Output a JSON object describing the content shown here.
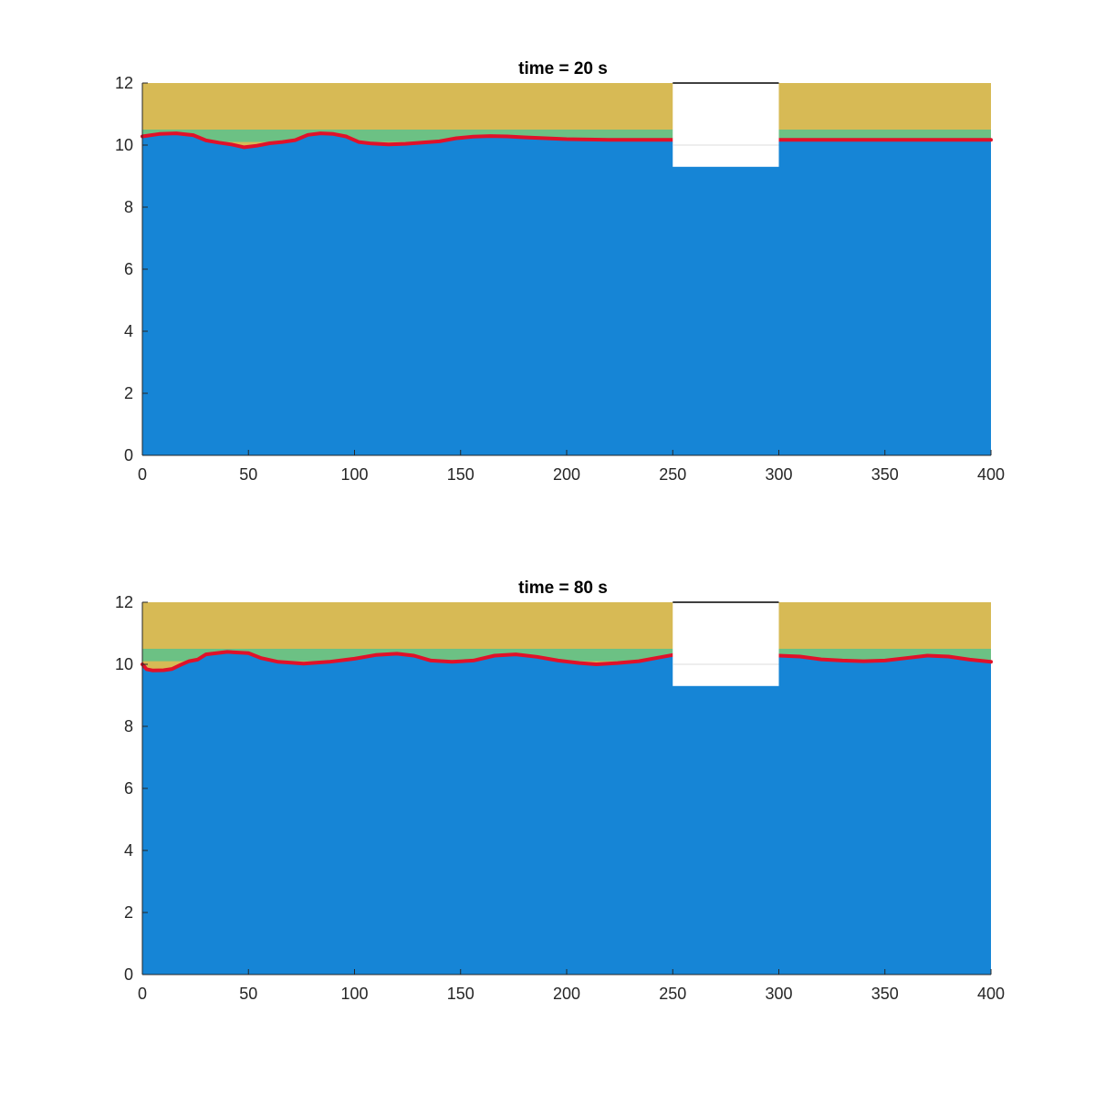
{
  "colors": {
    "water": "#1685d6",
    "air": "#d7ba55",
    "mix": "#6cc184",
    "interface": "#e0112a",
    "obstacle": "#ffffff",
    "axis": "#262626"
  },
  "chart_data": [
    {
      "type": "area",
      "title": "time = 20 s",
      "xlim": [
        0,
        400
      ],
      "ylim": [
        0,
        12
      ],
      "xticks": [
        "0",
        "50",
        "100",
        "150",
        "200",
        "250",
        "300",
        "350",
        "400"
      ],
      "yticks": [
        "0",
        "2",
        "4",
        "6",
        "8",
        "10",
        "12"
      ],
      "grid": false,
      "obstacle": {
        "x": [
          250,
          300
        ],
        "y_bottom": 9.3
      },
      "x": [
        0,
        8,
        16,
        24,
        30,
        36,
        42,
        48,
        54,
        60,
        66,
        72,
        78,
        84,
        90,
        96,
        102,
        108,
        116,
        124,
        132,
        140,
        148,
        156,
        164,
        172,
        180,
        190,
        200,
        210,
        220,
        230,
        240,
        250,
        300,
        320,
        340,
        360,
        380,
        400
      ],
      "y": [
        10.28,
        10.36,
        10.38,
        10.32,
        10.15,
        10.08,
        10.02,
        9.93,
        9.98,
        10.06,
        10.1,
        10.16,
        10.33,
        10.38,
        10.36,
        10.28,
        10.1,
        10.05,
        10.02,
        10.04,
        10.08,
        10.12,
        10.22,
        10.27,
        10.29,
        10.28,
        10.25,
        10.22,
        10.19,
        10.18,
        10.17,
        10.17,
        10.17,
        10.17,
        10.17,
        10.17,
        10.17,
        10.17,
        10.17,
        10.17
      ]
    },
    {
      "type": "area",
      "title": "time = 80 s",
      "xlim": [
        0,
        400
      ],
      "ylim": [
        0,
        12
      ],
      "xticks": [
        "0",
        "50",
        "100",
        "150",
        "200",
        "250",
        "300",
        "350",
        "400"
      ],
      "yticks": [
        "0",
        "2",
        "4",
        "6",
        "8",
        "10",
        "12"
      ],
      "grid": false,
      "obstacle": {
        "x": [
          250,
          300
        ],
        "y_bottom": 9.3
      },
      "x": [
        0,
        2,
        5,
        10,
        14,
        18,
        22,
        26,
        30,
        40,
        50,
        56,
        64,
        76,
        88,
        100,
        110,
        120,
        128,
        136,
        146,
        156,
        166,
        176,
        186,
        196,
        206,
        214,
        224,
        234,
        242,
        250,
        300,
        310,
        320,
        330,
        340,
        350,
        360,
        370,
        380,
        390,
        400
      ],
      "y": [
        10.0,
        9.84,
        9.8,
        9.81,
        9.85,
        9.98,
        10.1,
        10.15,
        10.32,
        10.4,
        10.36,
        10.2,
        10.08,
        10.02,
        10.08,
        10.18,
        10.3,
        10.34,
        10.28,
        10.12,
        10.08,
        10.12,
        10.28,
        10.32,
        10.24,
        10.12,
        10.04,
        10.0,
        10.04,
        10.1,
        10.2,
        10.3,
        10.28,
        10.25,
        10.16,
        10.12,
        10.1,
        10.12,
        10.2,
        10.28,
        10.25,
        10.15,
        10.08
      ]
    }
  ]
}
